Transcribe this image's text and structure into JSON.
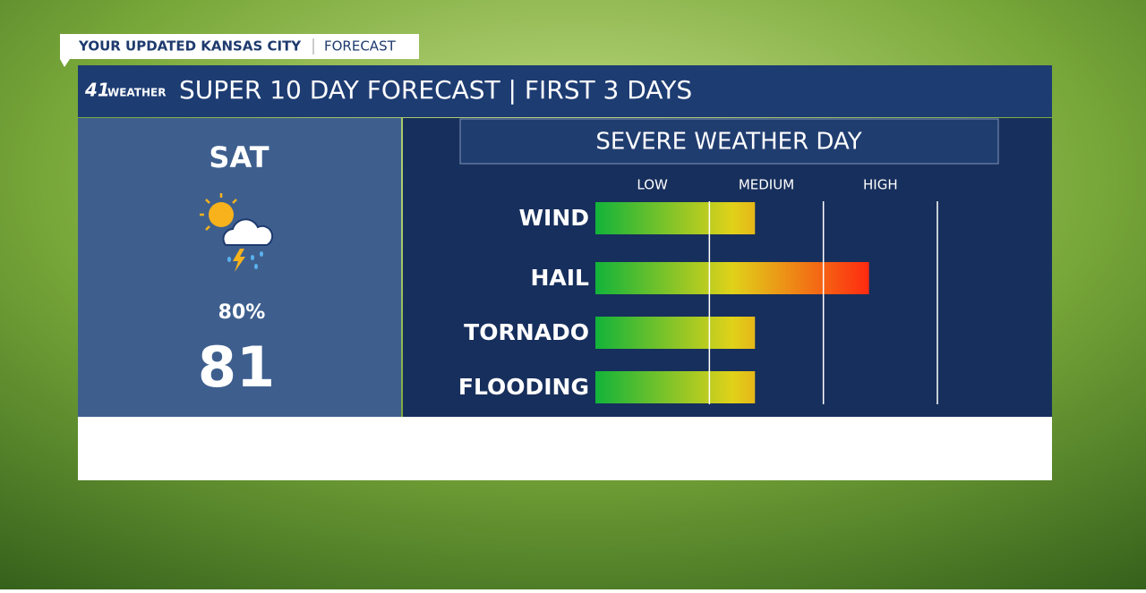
{
  "header": {
    "tag_left": "YOUR UPDATED KANSAS CITY",
    "tag_right": "FORECAST",
    "logo_number": "41",
    "logo_text": "WEATHER",
    "title": "SUPER 10 DAY FORECAST | FIRST 3 DAYS"
  },
  "day_panel": {
    "day": "SAT",
    "precip": "80%",
    "temp": "81"
  },
  "chart_data": {
    "type": "bar",
    "orientation": "horizontal",
    "title": "SEVERE WEATHER DAY",
    "categories": [
      "WIND",
      "HAIL",
      "TORNADO",
      "FLOODING"
    ],
    "values": [
      1.4,
      2.4,
      1.4,
      1.4
    ],
    "xlim": [
      0,
      3
    ],
    "xticks": [
      {
        "value": 0.5,
        "label": "LOW"
      },
      {
        "value": 1.5,
        "label": "MEDIUM"
      },
      {
        "value": 2.5,
        "label": "HIGH"
      }
    ],
    "grid_lines": [
      1,
      2,
      3
    ],
    "colors": [
      "#12b33a",
      "#e0d21a",
      "#ff2a10"
    ]
  }
}
